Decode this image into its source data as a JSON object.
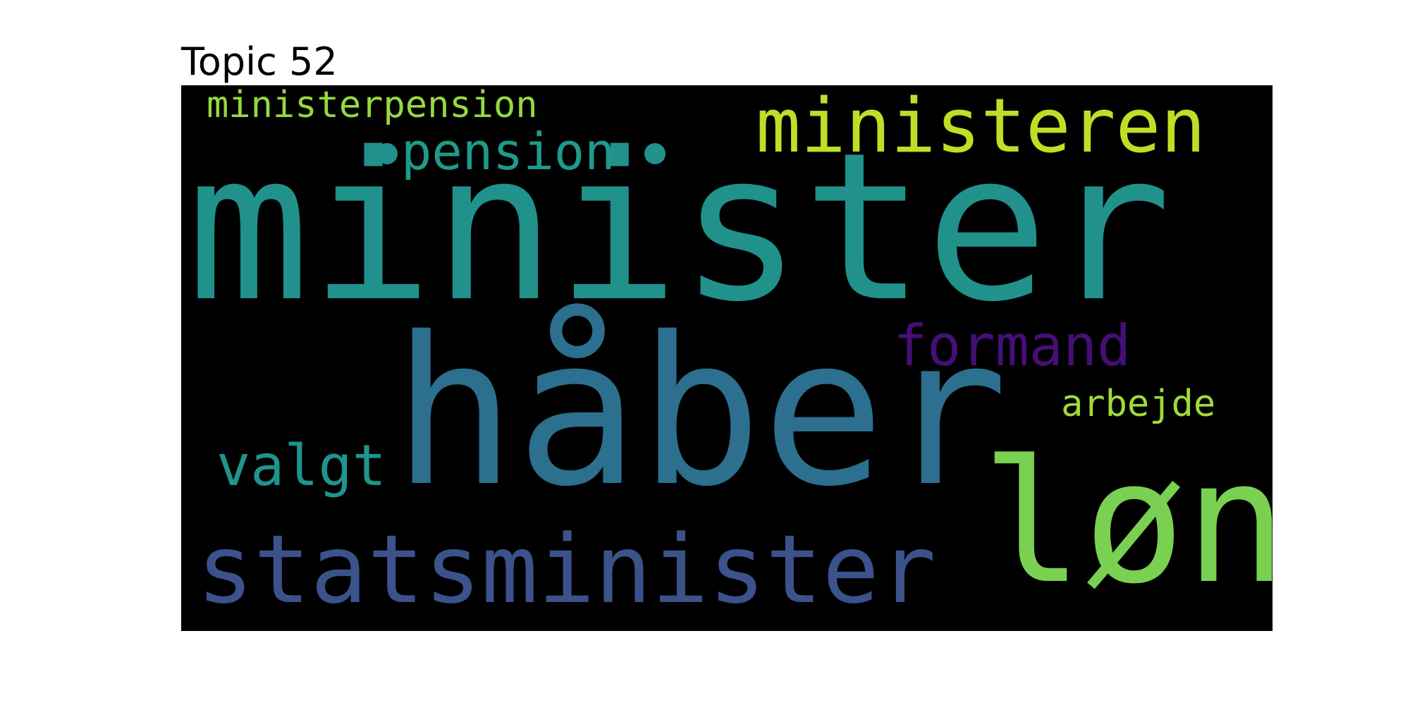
{
  "title": "Topic 52",
  "words": [
    {
      "text": "minister",
      "color": "#21918c"
    },
    {
      "text": "håber",
      "color": "#2c6f8e"
    },
    {
      "text": "løn",
      "color": "#7ad151"
    },
    {
      "text": "statsminister",
      "color": "#3b528b"
    },
    {
      "text": "ministeren",
      "color": "#bddf26"
    },
    {
      "text": "pension",
      "color": "#1f9a8a"
    },
    {
      "text": "formand",
      "color": "#440f76"
    },
    {
      "text": "valgt",
      "color": "#1f948c"
    },
    {
      "text": "arbejde",
      "color": "#a0da39"
    },
    {
      "text": "ministerpension",
      "color": "#95d840"
    }
  ],
  "dot_color": "#21918c"
}
